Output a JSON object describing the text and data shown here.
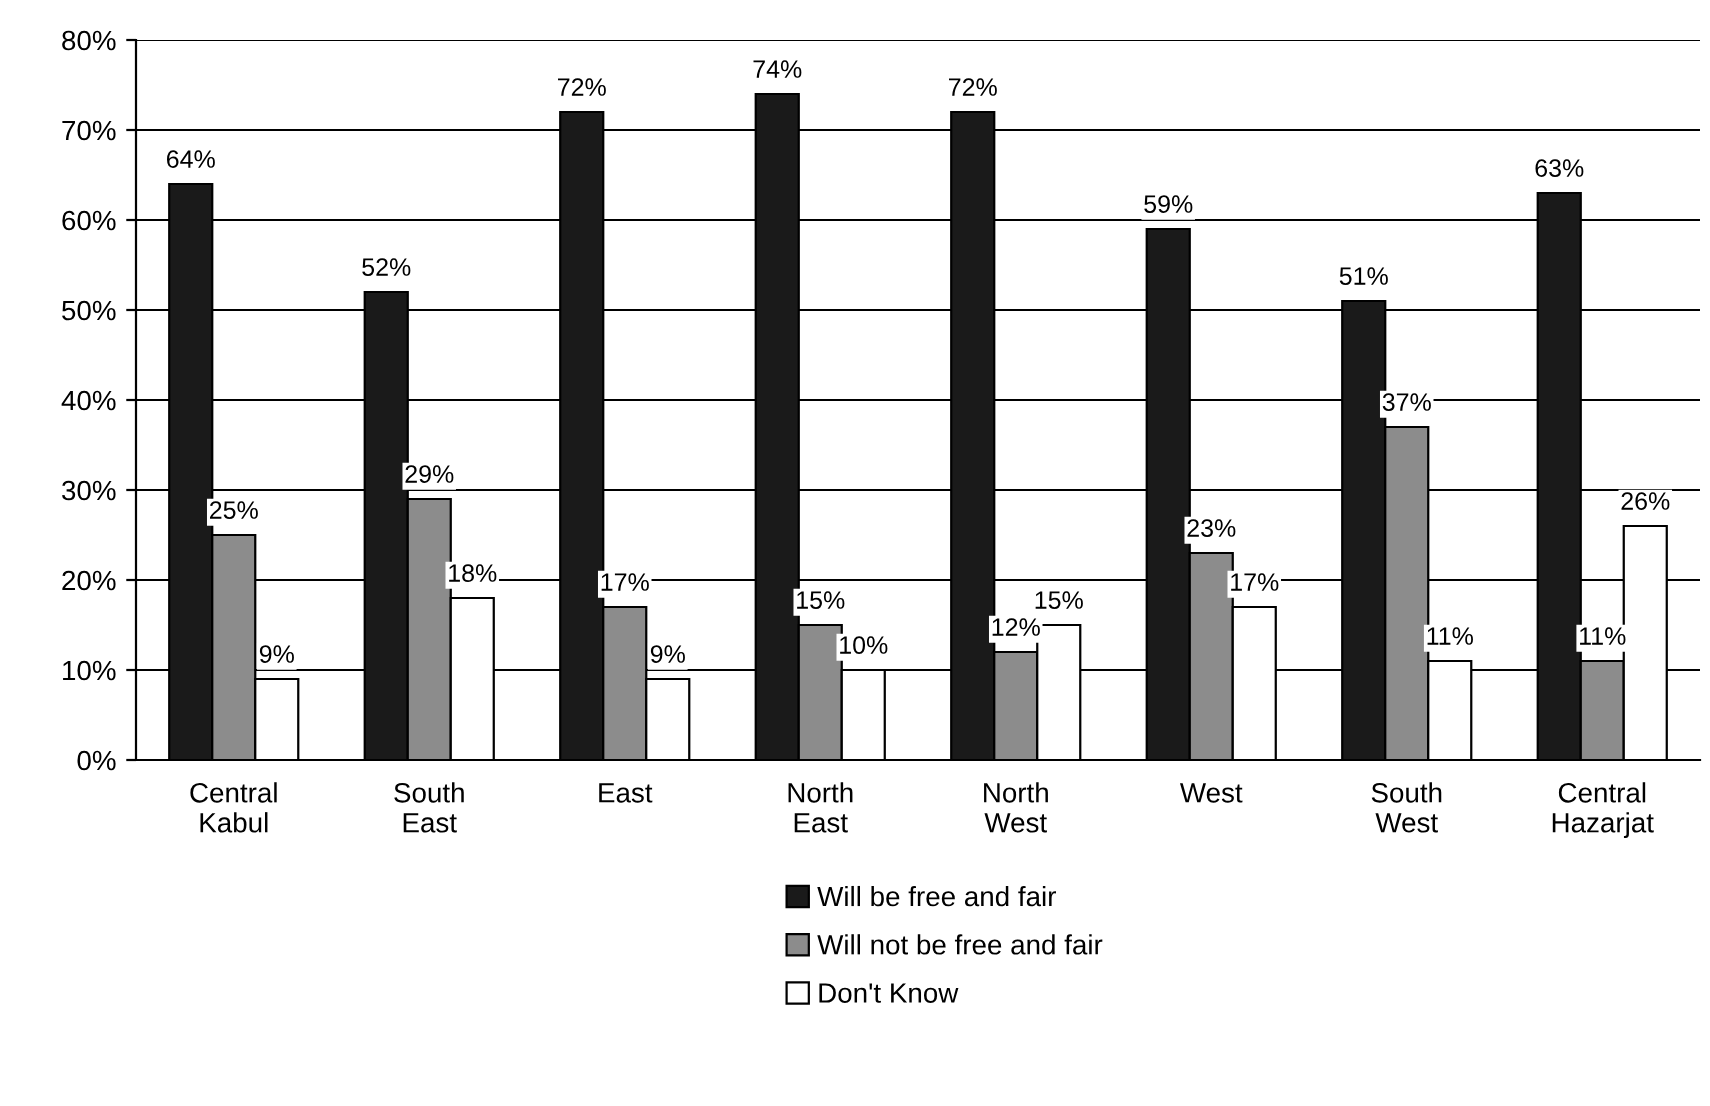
{
  "chart_data": {
    "type": "bar",
    "categories": [
      "Central\nKabul",
      "South\nEast",
      "East",
      "North\nEast",
      "North\nWest",
      "West",
      "South\nWest",
      "Central\nHazarjat"
    ],
    "series": [
      {
        "name": "Will be free and fair",
        "color": "#1a1a1a",
        "values": [
          64,
          52,
          72,
          74,
          72,
          59,
          51,
          63
        ],
        "value_labels": [
          "64%",
          "52%",
          "72%",
          "74%",
          "72%",
          "59%",
          "51%",
          "63%"
        ]
      },
      {
        "name": "Will not be free and fair",
        "color": "#8c8c8c",
        "values": [
          25,
          29,
          17,
          15,
          12,
          23,
          37,
          11
        ],
        "value_labels": [
          "25%",
          "29%",
          "17%",
          "15%",
          "12%",
          "23%",
          "37%",
          "11%"
        ]
      },
      {
        "name": "Don't Know",
        "color": "#ffffff",
        "values": [
          9,
          18,
          9,
          10,
          15,
          17,
          11,
          26
        ],
        "value_labels": [
          "9%",
          "18%",
          "9%",
          "10%",
          "15%",
          "17%",
          "11%",
          "26%"
        ]
      }
    ],
    "ylim": [
      0,
      80
    ],
    "yticks": [
      {
        "value": 0,
        "label": "0%"
      },
      {
        "value": 10,
        "label": "10%"
      },
      {
        "value": 20,
        "label": "20%"
      },
      {
        "value": 30,
        "label": "30%"
      },
      {
        "value": 40,
        "label": "40%"
      },
      {
        "value": 50,
        "label": "50%"
      },
      {
        "value": 60,
        "label": "60%"
      },
      {
        "value": 70,
        "label": "70%"
      },
      {
        "value": 80,
        "label": "80%"
      }
    ],
    "grid": "y",
    "legend": "bottom"
  }
}
